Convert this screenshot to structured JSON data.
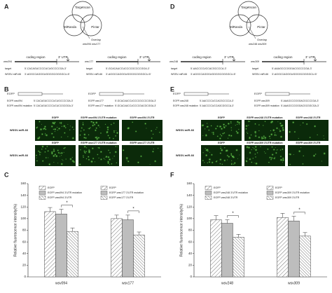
{
  "columns": [
    {
      "top": {
        "label": "A",
        "venn": [
          "Targetscan",
          "MiRanda",
          "Pictar"
        ],
        "overlap": "Overlap",
        "genes": "wsv094 wsv177",
        "maps": [
          {
            "gene": "wsv094",
            "coding": "coding region",
            "utr": "3' UTR",
            "target": "target",
            "target_seq": "5'-CACAGUCCCCUCUGCCCCGA-3'",
            "mirna": "WSSV-miR-66",
            "mirna_seq": "3'-AGGCCAGGGUGGGGCGGGGCU-5'"
          },
          {
            "gene": "wsv177",
            "coding": "coding region",
            "utr": "3' UTR",
            "target": "target",
            "target_seq": "5'-GCACAUCCUCCCCGCCCCGGA-3'",
            "mirna": "WSSV-miR-66",
            "mirna_seq": "3'-AGGCCAGGGUGGGGCGGGGCU-5'"
          }
        ]
      },
      "middle": {
        "label": "B",
        "constructs": [
          {
            "title": "EGFP",
            "rows": [
              {
                "name": "EGFP-wsv094",
                "seq": "5'-CACAGUCCCCUCUGCCCCGA-3'"
              },
              {
                "name": "EGFP-wsv094 mutation",
                "seq": "5'-CACAGUCCCCUCUCCGCGGA-3'"
              }
            ]
          },
          {
            "title": "EGFP",
            "rows": [
              {
                "name": "EGFP-wsv177",
                "seq": "5'-GCACAUCCUCCCCGCCCCGGA-3'"
              },
              {
                "name": "EGFP-wsv177 mutation",
                "seq": "5'-GCACAUCCUCCCCGACGCGGA-3'"
              }
            ]
          }
        ],
        "image_rows": [
          {
            "row_label": "WSSV-miR-66",
            "columns": [
              "EGFP",
              "EGFP-wsv094 3'UTR mutation",
              "EGFP-wsv094 3'UTR"
            ]
          },
          {
            "row_label": "WSSV-miR-66",
            "columns": [
              "EGFP",
              "EGFP-wsv177 3'UTR mutation",
              "EGFP-wsv177 3'UTR"
            ]
          }
        ]
      },
      "chart": {
        "label": "C",
        "y_label": "Relative fluorescence intensity(%)",
        "ylim": [
          0,
          160
        ],
        "yticks": [
          0,
          20,
          40,
          60,
          80,
          100,
          120,
          140,
          160
        ],
        "groups": [
          "wsv094",
          "wsv177"
        ],
        "legend": [
          "EGFP",
          "EGFP-wsv094 3'UTR mutation",
          "EGFP-wsv094 3'UTR",
          "EGFP",
          "EGFP-wsv177 3'UTR mutation",
          "EGFP-wsv177 3'UTR"
        ],
        "bars": [
          [
            112,
            108,
            78
          ],
          [
            100,
            98,
            72
          ]
        ],
        "errors": [
          [
            7,
            8,
            6
          ],
          [
            6,
            8,
            5
          ]
        ],
        "significance": "*"
      }
    },
    {
      "top": {
        "label": "D",
        "venn": [
          "Targetscan",
          "MiRanda",
          "Pictar"
        ],
        "overlap": "Overlap",
        "genes": "wsv248 wsv309",
        "maps": [
          {
            "gene": "wsv248",
            "coding": "coding region",
            "utr": "3' UTR",
            "target": "target",
            "target_seq": "5'-AACCCCUCCACGCCCCA-3'",
            "mirna": "WSSV-miR-66",
            "mirna_seq": "3'-AGGCCAGGGUGGGGCGGGGCU-5'"
          },
          {
            "gene": "wsv309",
            "coding": "coding region",
            "utr": "3' UTR",
            "target": "target",
            "target_seq": "5'-AAAGCCCGGGACGCCCCGA-3'",
            "mirna": "WSSV-miR-66",
            "mirna_seq": "3'-AGGCCAGGGUGGGGCGGGGCU-5'"
          }
        ]
      },
      "middle": {
        "label": "E",
        "constructs": [
          {
            "title": "EGFP",
            "rows": [
              {
                "name": "EGFP-wsv248",
                "seq": "5'-AACCCCUCCACGCCCCA-3'"
              },
              {
                "name": "EGFP-wsv248 mutation",
                "seq": "5'-AACCCCUCCAGCGGCCA-3'"
              }
            ]
          },
          {
            "title": "EGFP",
            "rows": [
              {
                "name": "EGFP-wsv309",
                "seq": "5'-AAAGCCCGGGACGCCCCGA-3'"
              },
              {
                "name": "EGFP-wsv309 mutation",
                "seq": "5'-AAAGCCCGGGACGCGGCGA-3'"
              }
            ]
          }
        ],
        "image_rows": [
          {
            "row_label": "WSSV-miR-66",
            "columns": [
              "EGFP",
              "EGFP-wsv248 3'UTR mutation",
              "EGFP-wsv248 3'UTR"
            ]
          },
          {
            "row_label": "WSSV-miR-66",
            "columns": [
              "EGFP",
              "EGFP-wsv309 3'UTR mutation",
              "EGFP-wsv309 3'UTR"
            ]
          }
        ]
      },
      "chart": {
        "label": "F",
        "y_label": "Relative fluorescence intensity(%)",
        "ylim": [
          0,
          160
        ],
        "yticks": [
          0,
          20,
          40,
          60,
          80,
          100,
          120,
          140,
          160
        ],
        "groups": [
          "wsv248",
          "wsv309"
        ],
        "legend": [
          "EGFP",
          "EGFP-wsv248 3'UTR mutation",
          "EGFP-wsv248 3'UTR",
          "EGFP",
          "EGFP-wsv309 3'UTR mutation",
          "EGFP-wsv309 3'UTR"
        ],
        "bars": [
          [
            98,
            92,
            68
          ],
          [
            102,
            96,
            70
          ]
        ],
        "errors": [
          [
            7,
            6,
            5
          ],
          [
            7,
            8,
            6
          ]
        ],
        "significance": "*"
      }
    }
  ]
}
